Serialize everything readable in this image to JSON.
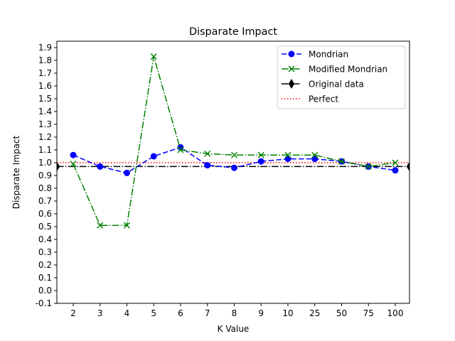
{
  "chart_data": {
    "type": "line",
    "title": "Disparate Impact",
    "xlabel": "K Value",
    "ylabel": "Disparate Impact",
    "categories": [
      "2",
      "3",
      "4",
      "5",
      "6",
      "7",
      "8",
      "9",
      "10",
      "25",
      "50",
      "75",
      "100"
    ],
    "ylim": [
      -0.1,
      1.95
    ],
    "yticks": [
      -0.1,
      0.0,
      0.1,
      0.2,
      0.3,
      0.4,
      0.5,
      0.6,
      0.7,
      0.8,
      0.9,
      1.0,
      1.1,
      1.2,
      1.3,
      1.4,
      1.5,
      1.6,
      1.7,
      1.8,
      1.9
    ],
    "grid": false,
    "legend_position": "top-right",
    "series": [
      {
        "name": "Mondrian",
        "color": "#0000ff",
        "linestyle": "dashed",
        "marker": "circle",
        "values": [
          1.06,
          0.97,
          0.92,
          1.05,
          1.12,
          0.98,
          0.96,
          1.01,
          1.03,
          1.03,
          1.01,
          0.97,
          0.94
        ]
      },
      {
        "name": "Modified Mondrian",
        "color": "#008000",
        "linestyle": "dashdot",
        "marker": "x",
        "values": [
          0.99,
          0.51,
          0.51,
          1.83,
          1.1,
          1.07,
          1.06,
          1.06,
          1.06,
          1.06,
          1.01,
          0.97,
          1.0
        ]
      }
    ],
    "reference_lines": [
      {
        "name": "Original data",
        "value": 0.97,
        "color": "#000000",
        "linestyle": "dashdot",
        "marker": "thin_diamond"
      },
      {
        "name": "Perfect",
        "value": 1.0,
        "color": "#ff0000",
        "linestyle": "dotted",
        "marker": "none"
      }
    ]
  }
}
